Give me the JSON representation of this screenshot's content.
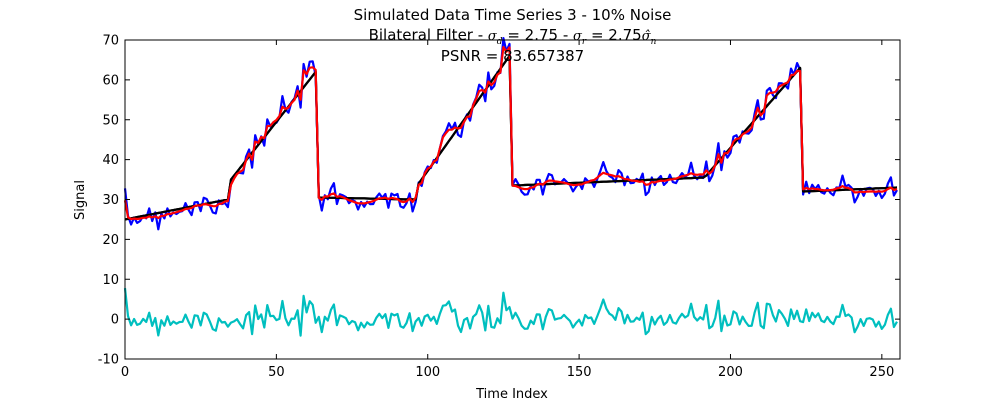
{
  "chart_data": {
    "type": "line",
    "title": "Simulated Data Time Series 3 - 10% Noise",
    "subtitle": {
      "prefix": "Bilateral Filter - ",
      "sigma_d_symbol": "σ",
      "sigma_d_sub": "d",
      "sigma_d_value": " = 2.75 - ",
      "sigma_r_symbol": "σ",
      "sigma_r_sub": "r",
      "sigma_r_value": " = 2.75",
      "sigma_n_symbol": "σ̂",
      "sigma_n_sub": "n"
    },
    "psnr_label": "PSNR = 83.657387",
    "xlabel": "Time Index",
    "ylabel": "Signal",
    "xlim": [
      0,
      256
    ],
    "ylim": [
      -10,
      70
    ],
    "xticks": [
      "0",
      "50",
      "100",
      "150",
      "200",
      "250"
    ],
    "xtick_values": [
      0,
      50,
      100,
      150,
      200,
      250
    ],
    "yticks": [
      "-10",
      "0",
      "10",
      "20",
      "30",
      "40",
      "50",
      "60",
      "70"
    ],
    "ytick_values": [
      -10,
      0,
      10,
      20,
      30,
      40,
      50,
      60,
      70
    ],
    "grid": false,
    "legend": "none",
    "segments": [
      {
        "x0": 0,
        "x1": 34,
        "y0": 25,
        "y1": 30
      },
      {
        "x0": 35,
        "x1": 63,
        "y0": 35,
        "y1": 62
      },
      {
        "x0": 64,
        "x1": 96,
        "y0": 30.5,
        "y1": 30
      },
      {
        "x0": 97,
        "x1": 127,
        "y0": 34,
        "y1": 66
      },
      {
        "x0": 128,
        "x1": 191,
        "y0": 33.5,
        "y1": 35.5
      },
      {
        "x0": 192,
        "x1": 223,
        "y0": 36,
        "y1": 63
      },
      {
        "x0": 224,
        "x1": 255,
        "y0": 32,
        "y1": 33
      }
    ],
    "noise_seed": 7,
    "noise_std": 2.0,
    "series": [
      {
        "role": "true-signal",
        "color": "#000000",
        "width": 2.2
      },
      {
        "role": "noisy-signal",
        "color": "#0000ff",
        "width": 2.2
      },
      {
        "role": "filtered-signal",
        "color": "#ff0000",
        "width": 2.2
      },
      {
        "role": "residual-noise",
        "color": "#00bfbf",
        "width": 2.2
      }
    ]
  }
}
